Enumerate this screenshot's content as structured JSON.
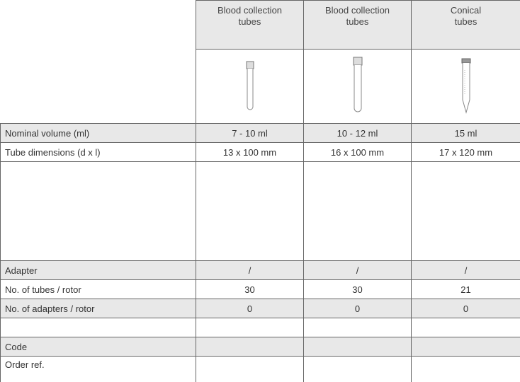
{
  "header": {
    "columns": [
      [
        "Blood collection",
        "tubes"
      ],
      [
        "Blood collection",
        "tubes"
      ],
      [
        "Conical",
        "tubes"
      ]
    ]
  },
  "rows": [
    {
      "label": "Nominal volume (ml)",
      "values": [
        "7 - 10 ml",
        "10 - 12 ml",
        "15 ml"
      ]
    },
    {
      "label": "Tube dimensions (d x l)",
      "values": [
        "13 x 100 mm",
        "16 x 100 mm",
        "17 x 120 mm"
      ]
    },
    {
      "label": "Adapter",
      "values": [
        "/",
        "/",
        "/"
      ]
    },
    {
      "label": "No. of tubes / rotor",
      "values": [
        "30",
        "30",
        "21"
      ]
    },
    {
      "label": "No. of adapters / rotor",
      "values": [
        "0",
        "0",
        "0"
      ]
    },
    {
      "label": "Code"
    },
    {
      "label": "Order ref."
    }
  ]
}
